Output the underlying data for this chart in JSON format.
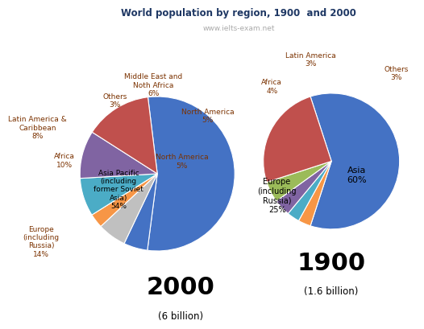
{
  "title": "World population by region, 1900  and 2000",
  "subtitle": "www.ielts-exam.net",
  "chart2000": {
    "values": [
      54,
      5,
      6,
      3,
      8,
      10,
      5,
      14
    ],
    "colors": [
      "#4472C4",
      "#4472C4",
      "#C0C0C0",
      "#F79646",
      "#4BACC6",
      "#8064A2",
      "#9BBB59",
      "#C0504D"
    ],
    "year": "2000",
    "pop": "(6 billion)"
  },
  "chart1900": {
    "values": [
      60,
      3,
      3,
      4,
      5,
      25
    ],
    "colors": [
      "#4472C4",
      "#F79646",
      "#4BACC6",
      "#8064A2",
      "#9BBB59",
      "#C0504D"
    ],
    "year": "1900",
    "pop": "(1.6 billion)"
  },
  "title_color": "#1F3864",
  "subtitle_color": "#AAAAAA",
  "label_color_dark": "#7B3200",
  "label_color_inside": "#000000"
}
